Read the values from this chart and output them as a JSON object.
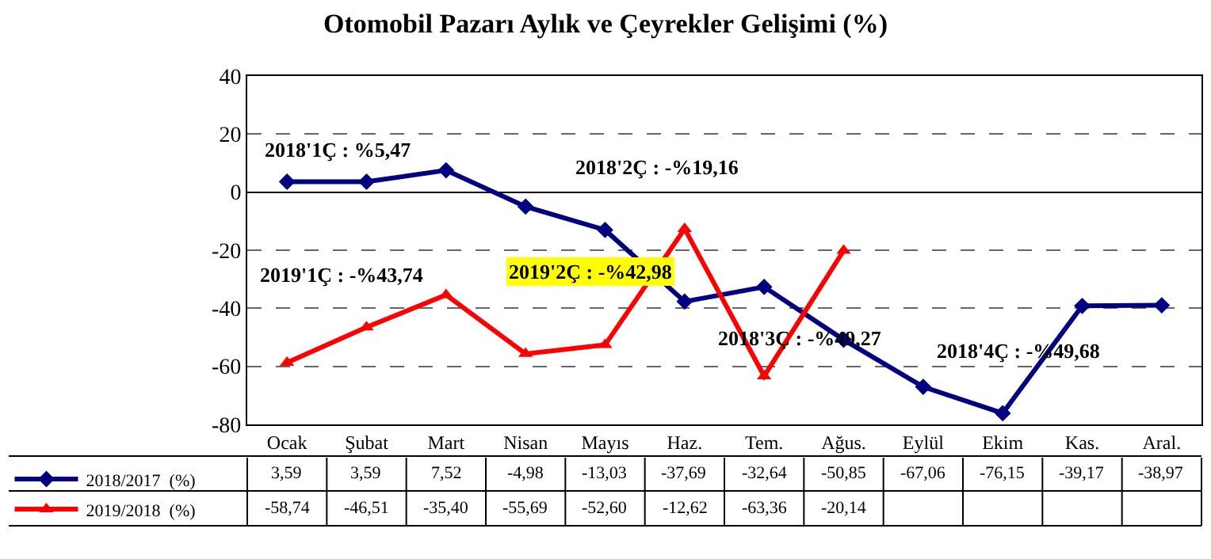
{
  "chart_data": {
    "type": "line",
    "title": "Otomobil Pazarı Aylık ve Çeyrekler Gelişimi (%)",
    "categories": [
      "Ocak",
      "Şubat",
      "Mart",
      "Nisan",
      "Mayıs",
      "Haz.",
      "Tem.",
      "Ağus.",
      "Eylül",
      "Ekim",
      "Kas.",
      "Aral."
    ],
    "series": [
      {
        "name": "2018/2017  (%)",
        "color": "#000080",
        "marker": "diamond",
        "values": [
          3.59,
          3.59,
          7.52,
          -4.98,
          -13.03,
          -37.69,
          -32.64,
          -50.85,
          -67.06,
          -76.15,
          -39.17,
          -38.97
        ],
        "value_labels": [
          "3,59",
          "3,59",
          "7,52",
          "-4,98",
          "-13,03",
          "-37,69",
          "-32,64",
          "-50,85",
          "-67,06",
          "-76,15",
          "-39,17",
          "-38,97"
        ]
      },
      {
        "name": "2019/2018  (%)",
        "color": "#ff0000",
        "marker": "triangle",
        "values": [
          -58.74,
          -46.51,
          -35.4,
          -55.69,
          -52.6,
          -12.62,
          -63.36,
          -20.14,
          null,
          null,
          null,
          null
        ],
        "value_labels": [
          "-58,74",
          "-46,51",
          "-35,40",
          "-55,69",
          "-52,60",
          "-12,62",
          "-63,36",
          "-20,14",
          null,
          null,
          null,
          null
        ]
      }
    ],
    "ylim": [
      -80,
      40
    ],
    "yticks": [
      -80,
      -60,
      -40,
      -20,
      0,
      20,
      40
    ],
    "grid": "y",
    "legend": "bottom left",
    "annotations": [
      "2018'1Ç : %5,47",
      "2018'2Ç : -%19,16",
      "2019'1Ç : -%43,74",
      "2019'2Ç : -%42,98",
      "2018'3Ç : -%49,27",
      "2018'4Ç : -%49,68"
    ]
  }
}
